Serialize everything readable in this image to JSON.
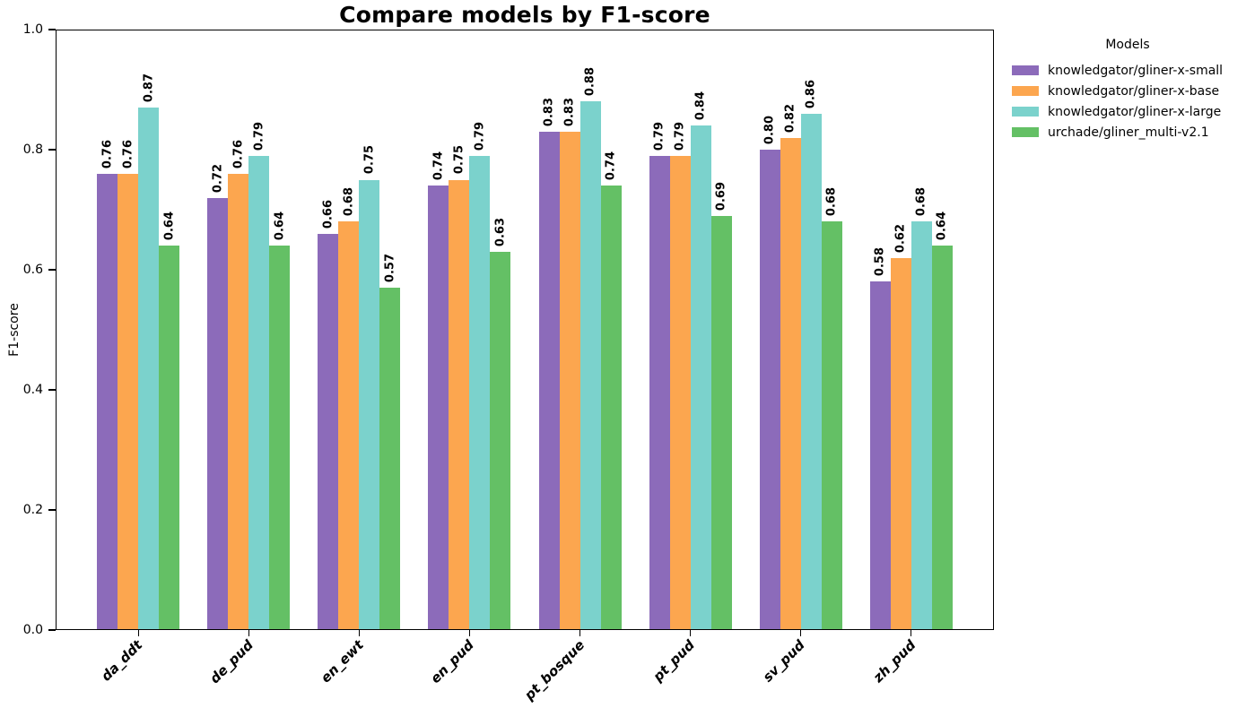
{
  "chart_data": {
    "type": "bar",
    "title": "Compare models by F1-score",
    "xlabel": "",
    "ylabel": "F1-score",
    "ylim": [
      0.0,
      1.0
    ],
    "yticks": [
      0.0,
      0.2,
      0.4,
      0.6,
      0.8,
      1.0
    ],
    "grid": false,
    "bar_value_labels": true,
    "bar_value_label_rotation": 90,
    "legend_title": "Models",
    "legend_position": "outside upper right",
    "categories": [
      "da_ddt",
      "de_pud",
      "en_ewt",
      "en_pud",
      "pt_bosque",
      "pt_pud",
      "sv_pud",
      "zh_pud"
    ],
    "series": [
      {
        "name": "knowledgator/gliner-x-small",
        "color": "#8C6BBA",
        "values": [
          0.76,
          0.72,
          0.66,
          0.74,
          0.83,
          0.79,
          0.8,
          0.58
        ]
      },
      {
        "name": "knowledgator/gliner-x-base",
        "color": "#FCA64F",
        "values": [
          0.76,
          0.76,
          0.68,
          0.75,
          0.83,
          0.79,
          0.82,
          0.62
        ]
      },
      {
        "name": "knowledgator/gliner-x-large",
        "color": "#7BD2CC",
        "values": [
          0.87,
          0.79,
          0.75,
          0.79,
          0.88,
          0.84,
          0.86,
          0.68
        ]
      },
      {
        "name": "urchade/gliner_multi-v2.1",
        "color": "#64C065",
        "values": [
          0.64,
          0.64,
          0.57,
          0.63,
          0.74,
          0.69,
          0.68,
          0.64
        ]
      }
    ]
  }
}
